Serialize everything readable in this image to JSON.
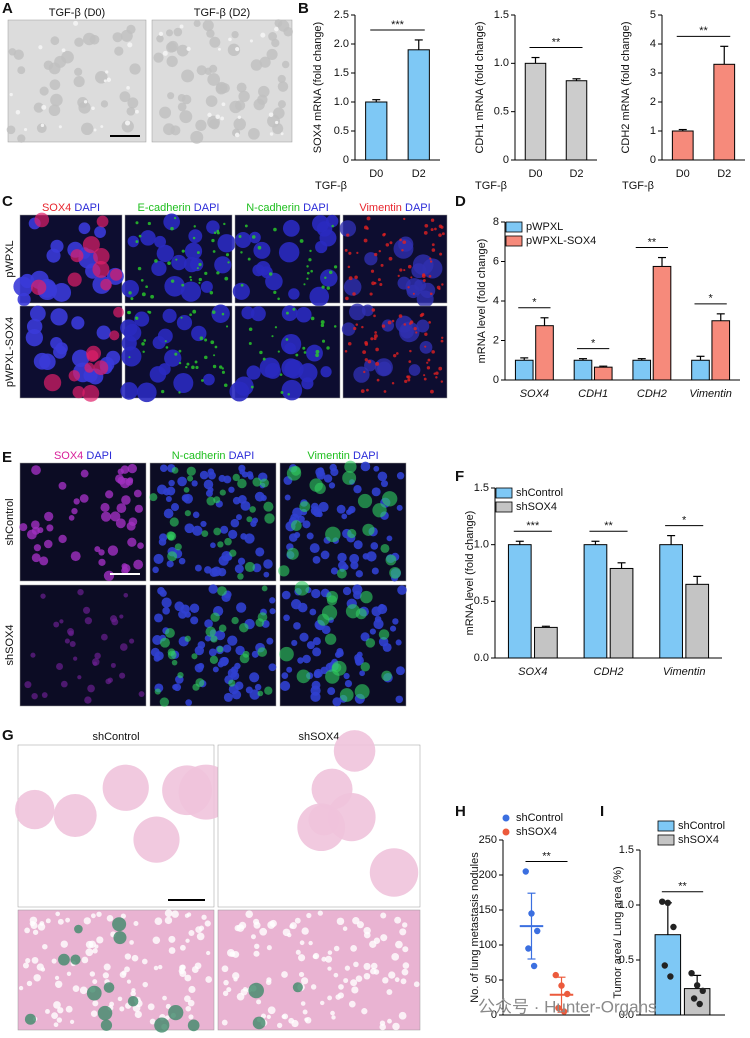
{
  "panel_letters": [
    "A",
    "B",
    "C",
    "D",
    "E",
    "F",
    "G",
    "H",
    "I"
  ],
  "panel_A": {
    "labels": [
      "TGF-β (D0)",
      "TGF-β (D2)"
    ]
  },
  "panel_C": {
    "columns": [
      [
        {
          "text": "SOX4",
          "color": "#e8262e"
        },
        {
          "text": " DAPI",
          "color": "#2b2bd8"
        }
      ],
      [
        {
          "text": "E-cadherin",
          "color": "#1fbf1f"
        },
        {
          "text": " DAPI",
          "color": "#2b2bd8"
        }
      ],
      [
        {
          "text": "N-cadherin",
          "color": "#1fbf1f"
        },
        {
          "text": " DAPI",
          "color": "#2b2bd8"
        }
      ],
      [
        {
          "text": "Vimentin",
          "color": "#e8262e"
        },
        {
          "text": " DAPI",
          "color": "#2b2bd8"
        }
      ]
    ],
    "rows": [
      "pWPXL",
      "pWPXL-SOX4"
    ]
  },
  "panel_E": {
    "columns": [
      [
        {
          "text": "SOX4",
          "color": "#d8209a"
        },
        {
          "text": " DAPI",
          "color": "#2b2bd8"
        }
      ],
      [
        {
          "text": "N-cadherin",
          "color": "#1fbf1f"
        },
        {
          "text": " DAPI",
          "color": "#2b2bd8"
        }
      ],
      [
        {
          "text": "Vimentin",
          "color": "#1fbf1f"
        },
        {
          "text": " DAPI",
          "color": "#2b2bd8"
        }
      ]
    ],
    "rows": [
      "shControl",
      "shSOX4"
    ]
  },
  "panel_G": {
    "columns": [
      "shControl",
      "shSOX4"
    ]
  },
  "watermark": "公众号 · Hunter-Organs",
  "chart_data": [
    {
      "type": "bar",
      "ylabel": "SOX4 mRNA  (fold change)",
      "x_prefix": "TGF-β",
      "categories": [
        "D0",
        "D2"
      ],
      "values": [
        1.0,
        1.9
      ],
      "errors": [
        0.04,
        0.17
      ],
      "color": "#7ec8f5",
      "significance": "***",
      "ylim": [
        0,
        2.5
      ],
      "yticks": [
        0,
        0.5,
        {
          "value": 1,
          "label": "1.0"
        },
        1.5,
        {
          "value": 2,
          "label": "2.0"
        },
        2.5
      ]
    },
    {
      "type": "bar",
      "ylabel": "CDH1 mRNA  (fold change)",
      "x_prefix": "TGF-β",
      "categories": [
        "D0",
        "D2"
      ],
      "values": [
        1.0,
        0.82
      ],
      "errors": [
        0.06,
        0.02
      ],
      "color": "#cccccc",
      "significance": "**",
      "ylim": [
        0,
        1.5
      ],
      "yticks": [
        0,
        0.5,
        {
          "value": 1,
          "label": "1.0"
        },
        1.5
      ]
    },
    {
      "type": "bar",
      "ylabel": "CDH2 mRNA  (fold change)",
      "x_prefix": "TGF-β",
      "categories": [
        "D0",
        "D2"
      ],
      "values": [
        1.0,
        3.3
      ],
      "errors": [
        0.05,
        0.62
      ],
      "color": "#f68a7b",
      "significance": "**",
      "ylim": [
        0,
        5
      ],
      "yticks": [
        0,
        1,
        2,
        3,
        4,
        5
      ]
    },
    {
      "type": "bar",
      "ylabel": "mRNA level (fold change)",
      "categories": [
        "SOX4",
        "CDH1",
        "CDH2",
        "Vimentin"
      ],
      "series": [
        {
          "name": "pWPXL",
          "color": "#7ec8f5",
          "values": [
            1.0,
            1.0,
            1.0,
            1.0
          ],
          "errors": [
            0.12,
            0.08,
            0.08,
            0.2
          ]
        },
        {
          "name": "pWPXL-SOX4",
          "color": "#f68a7b",
          "values": [
            2.75,
            0.65,
            5.75,
            3.0
          ],
          "errors": [
            0.4,
            0.05,
            0.45,
            0.35
          ]
        }
      ],
      "significance": [
        "*",
        "*",
        "**",
        "*"
      ],
      "ylim": [
        0,
        8
      ],
      "yticks": [
        0,
        2,
        4,
        6,
        8
      ]
    },
    {
      "type": "bar",
      "ylabel": "mRNA level (fold change)",
      "categories": [
        "SOX4",
        "CDH2",
        "Vimentin"
      ],
      "series": [
        {
          "name": "shControl",
          "color": "#7ec8f5",
          "values": [
            1.0,
            1.0,
            1.0
          ],
          "errors": [
            0.03,
            0.03,
            0.08
          ]
        },
        {
          "name": "shSOX4",
          "color": "#c4c4c4",
          "values": [
            0.27,
            0.79,
            0.65
          ],
          "errors": [
            0.01,
            0.05,
            0.07
          ]
        }
      ],
      "significance": [
        "***",
        "**",
        "*"
      ],
      "ylim": [
        0,
        1.5
      ],
      "yticks": [
        {
          "value": 0,
          "label": "0.0"
        },
        0.5,
        {
          "value": 1,
          "label": "1.0"
        },
        1.5
      ]
    },
    {
      "type": "dot",
      "ylabel": "No. of lung metastasis nodules",
      "series": [
        {
          "name": "shControl",
          "color": "#3b6fe0",
          "values": [
            127
          ],
          "errors": [
            47
          ],
          "points": [
            205,
            145,
            120,
            95,
            70
          ]
        },
        {
          "name": "shSOX4",
          "color": "#ec5a3c",
          "values": [
            29
          ],
          "errors": [
            25
          ],
          "points": [
            57,
            42,
            30,
            10,
            5
          ]
        }
      ],
      "significance": "**",
      "ylim": [
        0,
        250
      ],
      "yticks": [
        0,
        50,
        100,
        150,
        200,
        250
      ]
    },
    {
      "type": "bar",
      "ylabel": "Tumor area/ Lung area (%)",
      "series": [
        {
          "name": "shControl",
          "color": "#7ec8f5",
          "values": [
            0.73
          ],
          "errors": [
            0.29
          ],
          "points": [
            1.03,
            1.02,
            0.8,
            0.45,
            0.35
          ]
        },
        {
          "name": "shSOX4",
          "color": "#c4c4c4",
          "values": [
            0.24
          ],
          "errors": [
            0.12
          ],
          "points": [
            0.38,
            0.27,
            0.22,
            0.15,
            0.1
          ]
        }
      ],
      "significance": "**",
      "ylim": [
        0,
        1.5
      ],
      "yticks": [
        {
          "value": 0,
          "label": "0.0"
        },
        0.5,
        {
          "value": 1,
          "label": "1.0"
        },
        1.5
      ]
    }
  ]
}
